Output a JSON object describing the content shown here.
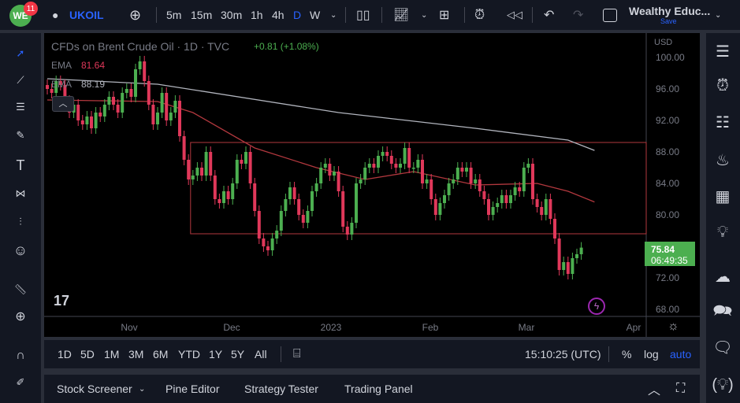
{
  "topbar": {
    "notification_count": "11",
    "symbol": "UKOIL",
    "intervals": [
      "5m",
      "15m",
      "30m",
      "1h",
      "4h",
      "D",
      "W"
    ],
    "active_interval": "D",
    "layout_name": "Wealthy Educ...",
    "save_label": "Save"
  },
  "legend": {
    "title": "CFDs on Brent Crude Oil · 1D · TVC",
    "change": "+0.81 (+1.08%)",
    "ema1_label": "EMA",
    "ema1_value": "81.64",
    "ema2_label": "EMA",
    "ema2_value": "88.19"
  },
  "price_axis": {
    "currency": "USD",
    "ticks": [
      "100.00",
      "96.00",
      "92.00",
      "88.00",
      "84.00",
      "80.00",
      "72.00",
      "68.00"
    ],
    "last_price": "75.84",
    "countdown": "06:49:35"
  },
  "time_axis": {
    "labels": [
      "Nov",
      "Dec",
      "2023",
      "Feb",
      "Mar",
      "Apr"
    ]
  },
  "bottombar": {
    "ranges": [
      "1D",
      "5D",
      "1M",
      "3M",
      "6M",
      "YTD",
      "1Y",
      "5Y",
      "All"
    ],
    "clock": "15:10:25 (UTC)",
    "percent": "%",
    "log": "log",
    "auto": "auto"
  },
  "panel": {
    "tabs": [
      "Stock Screener",
      "Pine Editor",
      "Strategy Tester",
      "Trading Panel"
    ]
  },
  "colors": {
    "up": "#4caf50",
    "down": "#e0385a",
    "ema1": "#b2383e",
    "ema2": "#b2b5be",
    "accent": "#2962ff",
    "price_label": "#4caf50"
  },
  "chart_data": {
    "type": "candlestick",
    "ylim": [
      66,
      102
    ],
    "closes": [
      96,
      95.5,
      97,
      96.5,
      94.5,
      93,
      94,
      92,
      91.5,
      92.5,
      91,
      93,
      92.5,
      94,
      95,
      94,
      93,
      95.5,
      96,
      95,
      98.5,
      99.5,
      97,
      94,
      91.5,
      93,
      95.5,
      92,
      93,
      94.5,
      90,
      87,
      84.5,
      85,
      86,
      85,
      88,
      85,
      82,
      81.5,
      83,
      82,
      84,
      87,
      86.5,
      88,
      84,
      80.5,
      77,
      76,
      75.5,
      77,
      78,
      80.5,
      82,
      83.5,
      82,
      80,
      79,
      80.5,
      83,
      84,
      86,
      86.5,
      85,
      85.5,
      83,
      78.5,
      77.5,
      79,
      84,
      84.5,
      86,
      86.5,
      86,
      87.5,
      88,
      87.5,
      86.5,
      86,
      86.5,
      88.5,
      86,
      86,
      87,
      84,
      84.5,
      82,
      80,
      81.5,
      82.5,
      84,
      84.5,
      86,
      85.5,
      86,
      84,
      84.5,
      83,
      82,
      80,
      81,
      81.5,
      82.5,
      81.5,
      82.5,
      83.5,
      83,
      86,
      86.5,
      82,
      81,
      80,
      82,
      79.5,
      77,
      73,
      74,
      72.5,
      74.5,
      75,
      75.84
    ],
    "ema1": [
      [
        0,
        94.6
      ],
      [
        25,
        94.4
      ],
      [
        33,
        93
      ],
      [
        47,
        88.5
      ],
      [
        61,
        86
      ],
      [
        72,
        84.5
      ],
      [
        83,
        85.5
      ],
      [
        97,
        83.8
      ],
      [
        111,
        84
      ],
      [
        118,
        83
      ],
      [
        124,
        81.64
      ]
    ],
    "ema2": [
      [
        0,
        97.3
      ],
      [
        25,
        96.6
      ],
      [
        66,
        93
      ],
      [
        97,
        91
      ],
      [
        118,
        89.5
      ],
      [
        124,
        88.19
      ]
    ],
    "rectangle": {
      "start_index": 33,
      "top": 89.2,
      "bottom": 77.6
    }
  }
}
